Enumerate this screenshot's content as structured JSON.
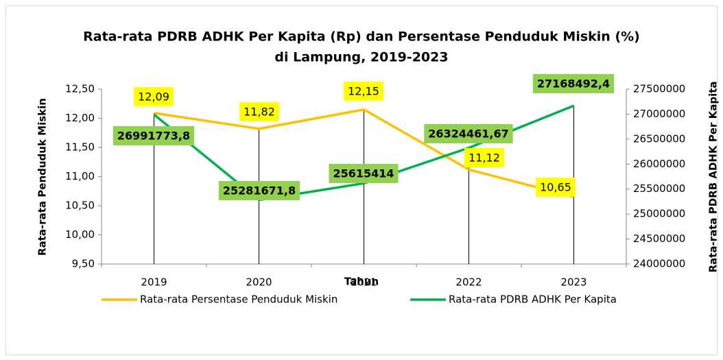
{
  "chart_data": {
    "type": "line",
    "title": [
      "Rata-rata PDRB ADHK Per Kapita (Rp) dan Persentase Penduduk Miskin (%)",
      "di Lampung, 2019-2023"
    ],
    "x_label": "Tahun",
    "y_label": "Rata-rata Penduduk Miskin",
    "y2_label": "Rata-rata PDRB ADHK Per Kapita",
    "categories": [
      "2019",
      "2020",
      "2021",
      "2022",
      "2023"
    ],
    "series": [
      {
        "name": "Rata-rata Persentase Penduduk Miskin",
        "color": "#FFC000",
        "label_color": "#FFFF00",
        "values": [
          12.09,
          11.82,
          12.15,
          11.12,
          10.65
        ],
        "value_labels": [
          "12,09",
          "11,82",
          "12,15",
          "11,12",
          "10,65"
        ]
      },
      {
        "name": "Rata-rata PDRB ADHK Per Kapita",
        "color": "#00B050",
        "label_color": "#92D050",
        "axis": "y2",
        "values": [
          26991773.8,
          25281671.8,
          25615414,
          26324461.67,
          27168492.4
        ],
        "value_labels": [
          "26991773,8",
          "25281671,8",
          "25615414",
          "26324461,67",
          "27168492,4"
        ]
      }
    ],
    "ylim": [
      9.5,
      12.5
    ],
    "yticks": [
      {
        "value": 9.5,
        "label": "9,50"
      },
      {
        "value": 10,
        "label": "10,00"
      },
      {
        "value": 10.5,
        "label": "10,50"
      },
      {
        "value": 11,
        "label": "11,00"
      },
      {
        "value": 11.5,
        "label": "11,50"
      },
      {
        "value": 12,
        "label": "12,00"
      },
      {
        "value": 12.5,
        "label": "12,50"
      }
    ],
    "y2lim": [
      24000000,
      27500000
    ],
    "y2ticks": [
      24000000,
      24500000,
      25000000,
      25500000,
      26000000,
      26500000,
      27000000,
      27500000
    ],
    "drop_lines": true
  }
}
